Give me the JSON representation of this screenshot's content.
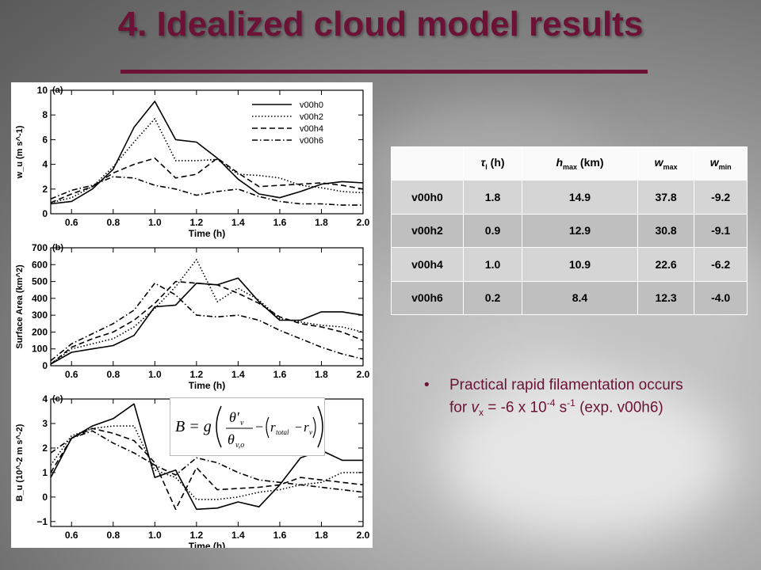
{
  "title": "4. Idealized cloud model results",
  "colors": {
    "title": "#6b1236",
    "rule": "#6b1236",
    "bullet_text": "#6b1236"
  },
  "table": {
    "headers": {
      "tau_symbol": "τ",
      "tau_sub": "l",
      "tau_unit": " (h)",
      "hmax_main": "h",
      "hmax_sub": "max",
      "hmax_unit": " (km)",
      "wmax_main": "w",
      "wmax_sub": "max",
      "wmin_main": "w",
      "wmin_sub": "min"
    },
    "rows": [
      {
        "exp": "v00h0",
        "tau": "1.8",
        "hmax": "14.9",
        "wmax": "37.8",
        "wmin": "-9.2"
      },
      {
        "exp": "v00h2",
        "tau": "0.9",
        "hmax": "12.9",
        "wmax": "30.8",
        "wmin": "-9.1"
      },
      {
        "exp": "v00h4",
        "tau": "1.0",
        "hmax": "10.9",
        "wmax": "22.6",
        "wmin": "-6.2"
      },
      {
        "exp": "v00h6",
        "tau": "0.2",
        "hmax": "8.4",
        "wmax": "12.3",
        "wmin": "-4.0"
      }
    ]
  },
  "bullet": {
    "dot": "•",
    "line1": "Practical rapid filamentation occurs for ",
    "vx_main": "v",
    "vx_sub": "x",
    "line2": " = -6 x 10",
    "exp1": "-4",
    "line3": " s",
    "exp2": "-1",
    "line4": " (exp. v00h6)"
  },
  "equation": {
    "lhs": "B = g",
    "theta_num": "θ′",
    "theta_num_sub": "v",
    "theta_den": "θ",
    "theta_den_sub": "v,o",
    "minus": "−",
    "r_total": "r",
    "r_total_sub": "total",
    "r_v": "r",
    "r_v_sub": "v"
  },
  "chart_data": [
    {
      "type": "line",
      "panel_label": "(a)",
      "xlabel": "Time (h)",
      "ylabel": "w_u (m s^-1)",
      "xlim": [
        0.5,
        2.0
      ],
      "ylim": [
        0,
        10
      ],
      "xticks": [
        0.6,
        0.8,
        1.0,
        1.2,
        1.4,
        1.6,
        1.8,
        2.0
      ],
      "xtick_labels": [
        "0.6",
        "0.8",
        "1.0",
        "1.2",
        "1.4",
        "1.6",
        "1.8",
        "2.0"
      ],
      "yticks": [
        0,
        2,
        4,
        6,
        8,
        10
      ],
      "ytick_labels": [
        "0",
        "2",
        "4",
        "6",
        "8",
        "10"
      ],
      "legend": "top-right",
      "series": [
        {
          "name": "v00h0",
          "style": "solid",
          "x": [
            0.5,
            0.6,
            0.7,
            0.8,
            0.9,
            1.0,
            1.1,
            1.2,
            1.3,
            1.4,
            1.5,
            1.6,
            1.7,
            1.8,
            1.9,
            2.0
          ],
          "y": [
            0.8,
            1.0,
            2.0,
            3.6,
            7.0,
            9.1,
            6.0,
            5.8,
            4.5,
            2.8,
            1.6,
            1.3,
            1.8,
            2.4,
            2.6,
            2.5
          ]
        },
        {
          "name": "v00h2",
          "style": "dotted",
          "x": [
            0.5,
            0.6,
            0.7,
            0.8,
            0.9,
            1.0,
            1.1,
            1.2,
            1.3,
            1.4,
            1.5,
            1.6,
            1.7,
            1.8,
            1.9,
            2.0
          ],
          "y": [
            0.9,
            1.3,
            2.2,
            3.8,
            5.8,
            7.7,
            4.3,
            4.3,
            4.4,
            3.2,
            3.1,
            2.9,
            2.3,
            2.1,
            1.8,
            1.7
          ]
        },
        {
          "name": "v00h4",
          "style": "dashed",
          "x": [
            0.5,
            0.6,
            0.7,
            0.8,
            0.9,
            1.0,
            1.1,
            1.2,
            1.3,
            1.4,
            1.5,
            1.6,
            1.7,
            1.8,
            1.9,
            2.0
          ],
          "y": [
            0.9,
            1.6,
            2.2,
            3.3,
            4.0,
            4.5,
            2.9,
            3.2,
            4.5,
            3.3,
            2.2,
            2.3,
            2.4,
            2.5,
            2.3,
            2.0
          ]
        },
        {
          "name": "v00h6",
          "style": "dashdot",
          "x": [
            0.5,
            0.6,
            0.7,
            0.8,
            0.9,
            1.0,
            1.1,
            1.2,
            1.3,
            1.4,
            1.5,
            1.6,
            1.7,
            1.8,
            1.9,
            2.0
          ],
          "y": [
            1.2,
            1.9,
            2.3,
            3.0,
            2.9,
            2.3,
            2.0,
            1.5,
            1.8,
            2.0,
            1.4,
            1.0,
            0.8,
            0.8,
            0.7,
            0.7
          ]
        }
      ]
    },
    {
      "type": "line",
      "panel_label": "(b)",
      "xlabel": "Time (h)",
      "ylabel": "Surface Area (km^2)",
      "xlim": [
        0.5,
        2.0
      ],
      "ylim": [
        0,
        700
      ],
      "xticks": [
        0.6,
        0.8,
        1.0,
        1.2,
        1.4,
        1.6,
        1.8,
        2.0
      ],
      "xtick_labels": [
        "0.6",
        "0.8",
        "1.0",
        "1.2",
        "1.4",
        "1.6",
        "1.8",
        "2.0"
      ],
      "yticks": [
        0,
        100,
        200,
        300,
        400,
        500,
        600,
        700
      ],
      "ytick_labels": [
        "0",
        "100",
        "200",
        "300",
        "400",
        "500",
        "600",
        "700"
      ],
      "series": [
        {
          "name": "v00h0",
          "style": "solid",
          "x": [
            0.5,
            0.6,
            0.7,
            0.8,
            0.9,
            1.0,
            1.1,
            1.2,
            1.3,
            1.4,
            1.5,
            1.6,
            1.7,
            1.8,
            1.9,
            2.0
          ],
          "y": [
            10,
            80,
            100,
            120,
            180,
            350,
            360,
            490,
            480,
            520,
            380,
            270,
            270,
            320,
            320,
            300
          ]
        },
        {
          "name": "v00h2",
          "style": "dotted",
          "x": [
            0.5,
            0.6,
            0.7,
            0.8,
            0.9,
            1.0,
            1.1,
            1.2,
            1.3,
            1.4,
            1.5,
            1.6,
            1.7,
            1.8,
            1.9,
            2.0
          ],
          "y": [
            10,
            100,
            130,
            160,
            230,
            340,
            470,
            630,
            380,
            460,
            390,
            280,
            260,
            240,
            230,
            200
          ]
        },
        {
          "name": "v00h4",
          "style": "dashed",
          "x": [
            0.5,
            0.6,
            0.7,
            0.8,
            0.9,
            1.0,
            1.1,
            1.2,
            1.3,
            1.4,
            1.5,
            1.6,
            1.7,
            1.8,
            1.9,
            2.0
          ],
          "y": [
            10,
            110,
            160,
            200,
            270,
            370,
            500,
            490,
            480,
            430,
            370,
            290,
            250,
            230,
            200,
            150
          ]
        },
        {
          "name": "v00h6",
          "style": "dashdot",
          "x": [
            0.5,
            0.6,
            0.7,
            0.8,
            0.9,
            1.0,
            1.1,
            1.2,
            1.3,
            1.4,
            1.5,
            1.6,
            1.7,
            1.8,
            1.9,
            2.0
          ],
          "y": [
            30,
            130,
            190,
            250,
            330,
            490,
            420,
            300,
            290,
            300,
            270,
            210,
            160,
            110,
            70,
            40
          ]
        }
      ]
    },
    {
      "type": "line",
      "panel_label": "(c)",
      "xlabel": "Time (h)",
      "ylabel": "B_u (10^-2 m s^-2)",
      "xlim": [
        0.5,
        2.0
      ],
      "ylim": [
        -1.2,
        4
      ],
      "xticks": [
        0.6,
        0.8,
        1.0,
        1.2,
        1.4,
        1.6,
        1.8,
        2.0
      ],
      "xtick_labels": [
        "0.6",
        "0.8",
        "1.0",
        "1.2",
        "1.4",
        "1.6",
        "1.8",
        "2.0"
      ],
      "yticks": [
        -1,
        0,
        1,
        2,
        3,
        4
      ],
      "ytick_labels": [
        "−1",
        "0",
        "1",
        "2",
        "3",
        "4"
      ],
      "series": [
        {
          "name": "v00h0",
          "style": "solid",
          "x": [
            0.5,
            0.6,
            0.7,
            0.8,
            0.9,
            1.0,
            1.1,
            1.2,
            1.3,
            1.4,
            1.5,
            1.6,
            1.7,
            1.8,
            1.9,
            2.0
          ],
          "y": [
            0.8,
            2.4,
            2.9,
            3.2,
            3.8,
            0.8,
            1.1,
            -0.5,
            -0.45,
            -0.2,
            -0.4,
            0.5,
            1.6,
            1.9,
            1.5,
            1.5
          ]
        },
        {
          "name": "v00h2",
          "style": "dotted",
          "x": [
            0.5,
            0.6,
            0.7,
            0.8,
            0.9,
            1.0,
            1.1,
            1.2,
            1.3,
            1.4,
            1.5,
            1.6,
            1.7,
            1.8,
            1.9,
            2.0
          ],
          "y": [
            1.3,
            2.5,
            2.8,
            2.9,
            2.9,
            1.1,
            0.8,
            -0.1,
            -0.1,
            0.0,
            0.2,
            0.3,
            0.5,
            0.6,
            1.0,
            1.0
          ]
        },
        {
          "name": "v00h4",
          "style": "dashed",
          "x": [
            0.5,
            0.6,
            0.7,
            0.8,
            0.9,
            1.0,
            1.1,
            1.2,
            1.3,
            1.4,
            1.5,
            1.6,
            1.7,
            1.8,
            1.9,
            2.0
          ],
          "y": [
            1.0,
            2.4,
            2.8,
            2.6,
            2.3,
            1.4,
            -0.5,
            1.2,
            0.3,
            0.35,
            0.4,
            0.5,
            0.8,
            0.7,
            0.6,
            0.5
          ]
        },
        {
          "name": "v00h6",
          "style": "dashdot",
          "x": [
            0.5,
            0.6,
            0.7,
            0.8,
            0.9,
            1.0,
            1.1,
            1.2,
            1.3,
            1.4,
            1.5,
            1.6,
            1.7,
            1.8,
            1.9,
            2.0
          ],
          "y": [
            1.8,
            2.4,
            2.7,
            2.2,
            1.8,
            1.3,
            0.9,
            1.6,
            1.4,
            1.0,
            0.7,
            0.6,
            0.5,
            0.4,
            0.3,
            0.2
          ]
        }
      ]
    }
  ]
}
